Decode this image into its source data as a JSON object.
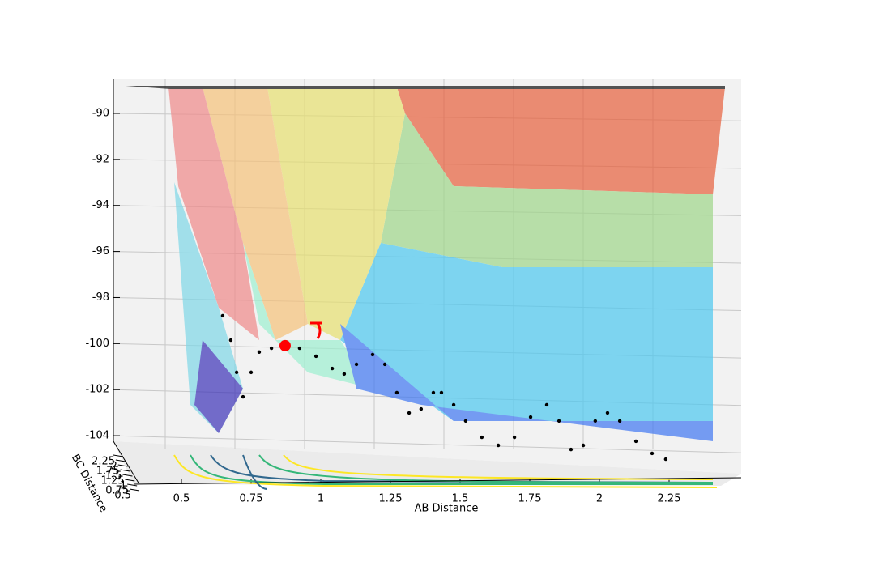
{
  "chart_data": {
    "type": "surface3d",
    "xlabel": "AB Distance",
    "ylabel": "BC Distance",
    "xlim": [
      0.3,
      2.45
    ],
    "xticks": [
      0.5,
      0.75,
      1.0,
      1.25,
      1.5,
      1.75,
      2.0,
      2.25
    ],
    "ylim": [
      0.5,
      2.25
    ],
    "yticks": [
      0.5,
      0.75,
      1.0,
      1.25,
      1.5,
      1.75,
      2.0,
      2.25
    ],
    "zlim": [
      -105.2,
      -88.6
    ],
    "zticks": [
      -90,
      -92,
      -94,
      -96,
      -98,
      -100,
      -102,
      -104
    ],
    "trajectory": {
      "color": "#000000",
      "x": [
        0.648,
        0.677,
        0.698,
        0.721,
        0.75,
        0.779,
        0.823,
        0.872,
        0.924,
        0.983,
        1.041,
        1.084,
        1.128,
        1.186,
        1.23,
        1.273,
        1.317,
        1.36,
        1.404,
        1.433,
        1.477,
        1.52,
        1.578,
        1.637,
        1.695,
        1.753,
        1.811,
        1.855,
        1.898,
        1.942,
        1.985,
        2.029,
        2.073,
        2.131,
        2.189,
        2.238
      ],
      "z": [
        -98.79,
        -99.85,
        -101.25,
        -102.31,
        -101.25,
        -100.37,
        -100.2,
        -100.09,
        -100.2,
        -100.55,
        -101.08,
        -101.32,
        -100.9,
        -100.48,
        -100.9,
        -102.13,
        -103.01,
        -102.84,
        -102.13,
        -102.13,
        -102.66,
        -103.36,
        -104.07,
        -104.42,
        -104.07,
        -103.19,
        -102.66,
        -103.36,
        -104.6,
        -104.42,
        -103.36,
        -103.01,
        -103.36,
        -104.24,
        -104.77,
        -105.02
      ]
    },
    "start_point": {
      "x": 0.872,
      "z": -100.09,
      "color": "#ff0000"
    }
  }
}
